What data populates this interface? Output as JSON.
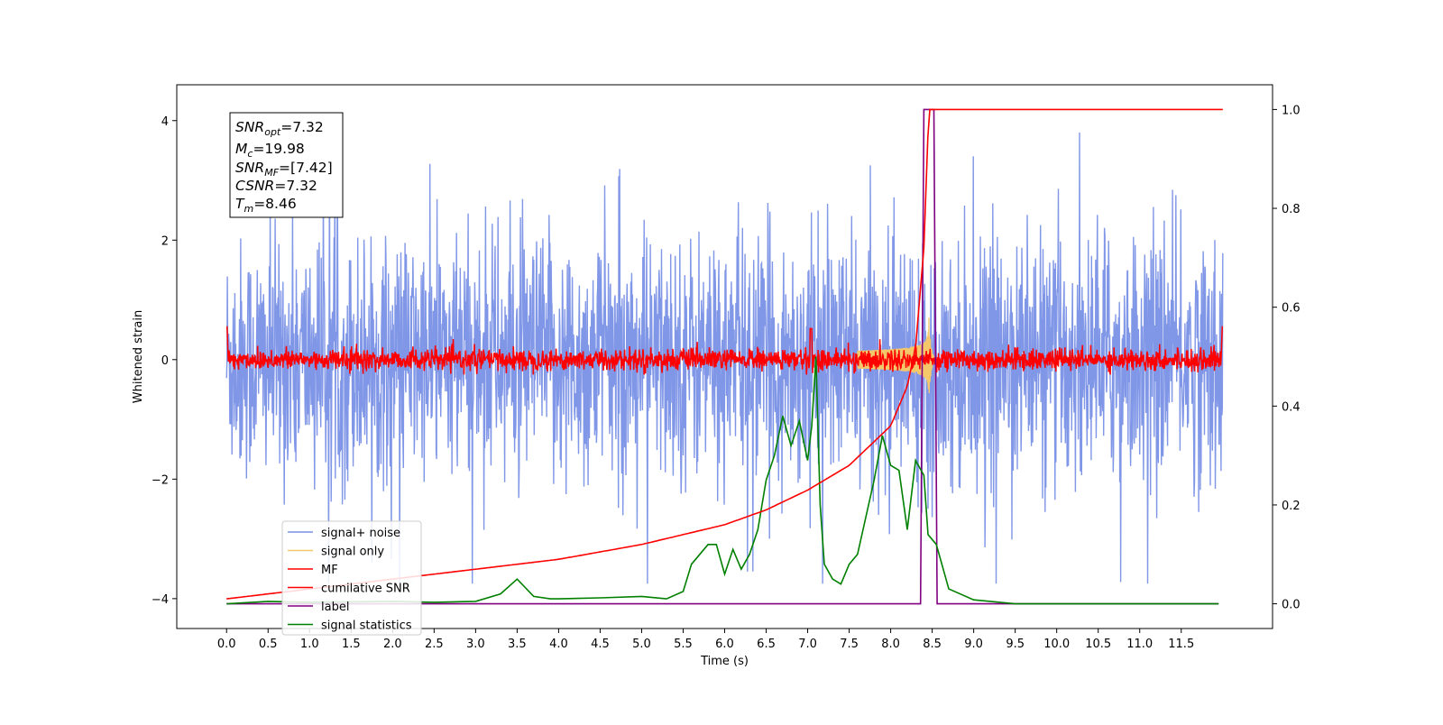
{
  "chart_data": {
    "type": "line",
    "xlabel": "Time (s)",
    "ylabel": "Whitened strain",
    "xlim": [
      -0.6,
      12.6
    ],
    "ylim": [
      -4.5,
      4.6
    ],
    "y2lim": [
      -0.05,
      1.05
    ],
    "x_ticks": [
      "0.0",
      "0.5",
      "1.0",
      "1.5",
      "2.0",
      "2.5",
      "3.0",
      "3.5",
      "4.0",
      "4.5",
      "5.0",
      "5.5",
      "6.0",
      "6.5",
      "7.0",
      "7.5",
      "8.0",
      "8.5",
      "9.0",
      "9.5",
      "10.0",
      "10.5",
      "11.0",
      "11.5"
    ],
    "y_ticks": [
      "−4",
      "−2",
      "0",
      "2",
      "4"
    ],
    "y2_ticks": [
      "0.0",
      "0.2",
      "0.4",
      "0.6",
      "0.8",
      "1.0"
    ],
    "info_box": {
      "snr_opt": "=7.32",
      "mc": "=19.98",
      "snr_mf": "=[7.42]",
      "csnr": "=7.32",
      "tm": "=8.46"
    },
    "legend": {
      "placement": "lower-left",
      "entries": [
        "signal+ noise",
        "signal only",
        "MF",
        "cumilative SNR",
        "label",
        "signal statistics"
      ]
    },
    "series": [
      {
        "name": "signal+ noise",
        "color": "#7990e6",
        "axis": "left",
        "description_values": {
          "t_start": 0.0,
          "t_end": 12.0,
          "approx_range": [
            -3.7,
            3.8
          ]
        }
      },
      {
        "name": "signal only",
        "color": "#f5c76b",
        "axis": "left",
        "values_chirp": {
          "peak_time": 8.46,
          "peak_amplitude": 0.7
        }
      },
      {
        "name": "MF",
        "color": "#ff0000",
        "axis": "left",
        "approx_range": [
          -0.25,
          0.5
        ]
      },
      {
        "name": "cumilative SNR",
        "color": "#ff0000",
        "axis": "right",
        "x": [
          0.0,
          1.0,
          2.0,
          3.0,
          4.0,
          5.0,
          6.0,
          6.5,
          7.0,
          7.5,
          8.0,
          8.2,
          8.3,
          8.4,
          8.46,
          12.0
        ],
        "y": [
          0.01,
          0.03,
          0.05,
          0.07,
          0.09,
          0.12,
          0.16,
          0.19,
          0.23,
          0.28,
          0.36,
          0.44,
          0.52,
          0.72,
          1.0,
          1.0
        ]
      },
      {
        "name": "label",
        "color": "#800080",
        "axis": "right",
        "x": [
          0.0,
          8.36,
          8.4,
          8.52,
          8.56,
          11.95
        ],
        "y": [
          0.0,
          0.0,
          1.0,
          1.0,
          0.0,
          0.0
        ]
      },
      {
        "name": "signal statistics",
        "color": "#008000",
        "axis": "right",
        "x": [
          0.0,
          0.5,
          1.0,
          1.5,
          2.0,
          2.5,
          3.0,
          3.3,
          3.5,
          3.7,
          3.9,
          4.0,
          4.5,
          5.0,
          5.3,
          5.5,
          5.6,
          5.8,
          5.9,
          6.0,
          6.1,
          6.2,
          6.3,
          6.4,
          6.5,
          6.6,
          6.7,
          6.8,
          6.9,
          7.0,
          7.05,
          7.1,
          7.15,
          7.2,
          7.3,
          7.4,
          7.5,
          7.6,
          7.8,
          7.9,
          8.0,
          8.1,
          8.2,
          8.3,
          8.4,
          8.45,
          8.55,
          8.7,
          9.0,
          9.5,
          10.0,
          11.95
        ],
        "y": [
          0.0,
          0.005,
          0.003,
          0.004,
          0.005,
          0.003,
          0.005,
          0.02,
          0.05,
          0.015,
          0.01,
          0.01,
          0.012,
          0.015,
          0.01,
          0.025,
          0.08,
          0.12,
          0.12,
          0.06,
          0.11,
          0.07,
          0.1,
          0.15,
          0.25,
          0.3,
          0.38,
          0.32,
          0.37,
          0.29,
          0.36,
          0.5,
          0.2,
          0.08,
          0.05,
          0.04,
          0.08,
          0.1,
          0.25,
          0.34,
          0.28,
          0.27,
          0.15,
          0.29,
          0.26,
          0.14,
          0.12,
          0.03,
          0.008,
          0.0,
          0.0,
          0.0
        ]
      }
    ]
  }
}
